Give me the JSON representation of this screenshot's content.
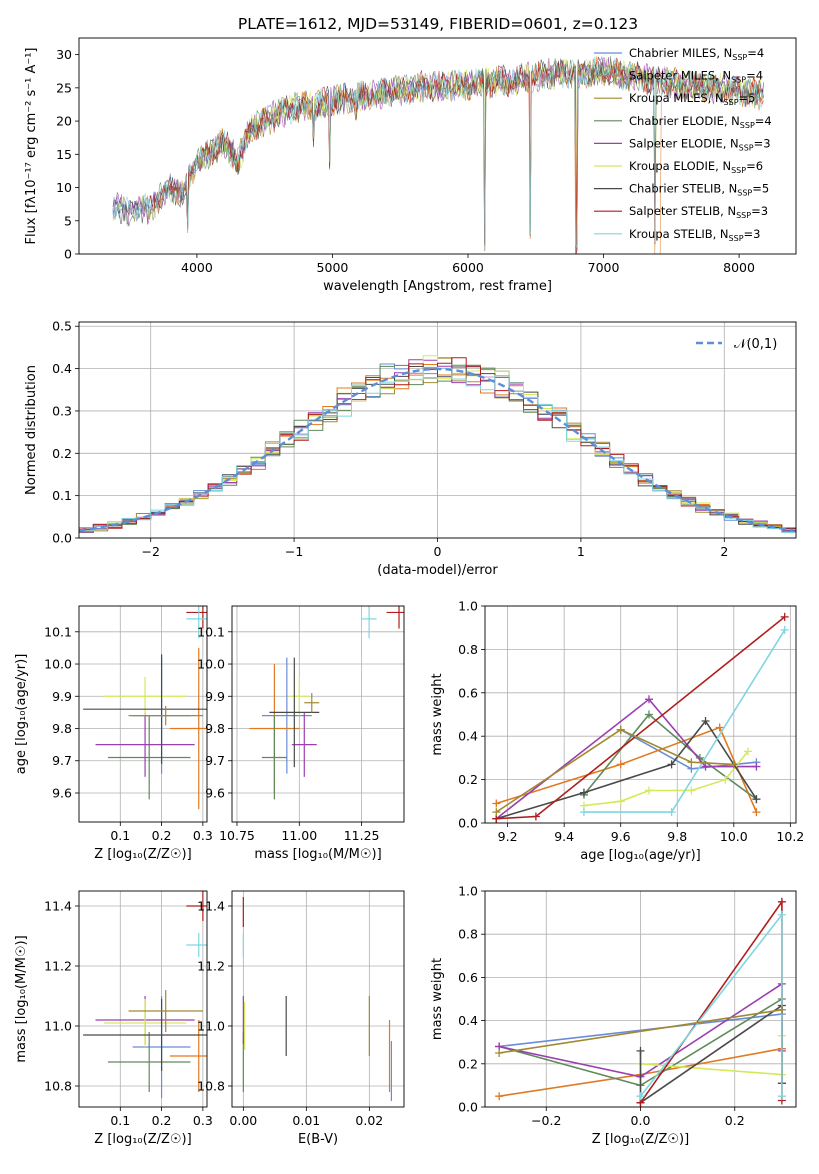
{
  "figure_title": "PLATE=1612, MJD=53149, FIBERID=0601, z=0.123",
  "chart_data": [
    {
      "id": "spectrum",
      "type": "line",
      "xlabel": "wavelength [Angstrom, rest frame]",
      "ylabel": "Flux [fλ10⁻¹⁷ erg cm⁻² s⁻¹ A⁻¹]",
      "xlim": [
        3130,
        8420
      ],
      "ylim": [
        0,
        32.5
      ],
      "xticks": [
        4000,
        5000,
        6000,
        7000,
        8000
      ],
      "yticks": [
        0,
        5,
        10,
        15,
        20,
        25,
        30
      ],
      "grid": false,
      "legend_placement": "top-right",
      "series": [
        {
          "name": "Chabrier MILES, N",
          "sub": "SSP",
          "eq": "=4",
          "color": "#6a8cd6"
        },
        {
          "name": "Salpeter MILES, N",
          "sub": "SSP",
          "eq": "=4",
          "color": "#e07a22"
        },
        {
          "name": "Kroupa MILES, N",
          "sub": "SSP",
          "eq": "=5",
          "color": "#a08a30"
        },
        {
          "name": "Chabrier ELODIE, N",
          "sub": "SSP",
          "eq": "=4",
          "color": "#5f8a5a"
        },
        {
          "name": "Salpeter ELODIE, N",
          "sub": "SSP",
          "eq": "=3",
          "color": "#9b3fb0"
        },
        {
          "name": "Kroupa ELODIE, N",
          "sub": "SSP",
          "eq": "=6",
          "color": "#d6e85a"
        },
        {
          "name": "Chabrier STELIB, N",
          "sub": "SSP",
          "eq": "=5",
          "color": "#4a4a4a"
        },
        {
          "name": "Salpeter STELIB, N",
          "sub": "SSP",
          "eq": "=3",
          "color": "#b01e1e"
        },
        {
          "name": "Kroupa STELIB, N",
          "sub": "SSP",
          "eq": "=3",
          "color": "#7fd6e0"
        }
      ],
      "continuum": [
        [
          3380,
          7
        ],
        [
          3500,
          6.5
        ],
        [
          3650,
          7
        ],
        [
          3800,
          10
        ],
        [
          3900,
          9
        ],
        [
          4000,
          14
        ],
        [
          4100,
          15
        ],
        [
          4200,
          17
        ],
        [
          4300,
          14
        ],
        [
          4400,
          19
        ],
        [
          4500,
          20
        ],
        [
          4700,
          22
        ],
        [
          4900,
          22.5
        ],
        [
          5100,
          23.5
        ],
        [
          5300,
          24
        ],
        [
          5600,
          25
        ],
        [
          6000,
          25.5
        ],
        [
          6300,
          26
        ],
        [
          6600,
          27
        ],
        [
          7000,
          27.5
        ],
        [
          7400,
          26
        ],
        [
          7800,
          25
        ],
        [
          8180,
          24
        ]
      ],
      "dips": [
        [
          3933,
          3
        ],
        [
          4861,
          16
        ],
        [
          4980,
          12.5
        ],
        [
          5175,
          20
        ],
        [
          6125,
          0
        ],
        [
          6460,
          2
        ],
        [
          6800,
          0
        ],
        [
          7380,
          0
        ]
      ]
    },
    {
      "id": "residuals",
      "type": "bar",
      "xlabel": "(data-model)/error",
      "ylabel": "Normed distribution",
      "xlim": [
        -2.5,
        2.5
      ],
      "ylim": [
        0,
        0.51
      ],
      "xticks": [
        -2,
        -1,
        0,
        1,
        2
      ],
      "yticks": [
        0.0,
        0.1,
        0.2,
        0.3,
        0.4,
        0.5
      ],
      "grid": true,
      "legend_placement": "top-right",
      "reference": {
        "label": "𝒩(0,1)",
        "mean": 0,
        "sigma": 1,
        "color": "#5b8fd9"
      },
      "bin_width": 0.1
    },
    {
      "id": "age-vs-Z",
      "type": "scatter",
      "xlabel": "Z [log₁₀(Z/Z☉)]",
      "ylabel": "age  [log₁₀(age/yr)]",
      "xlim": [
        0.0,
        0.31
      ],
      "ylim": [
        9.51,
        10.18
      ],
      "xticks": [
        0.1,
        0.2,
        0.3
      ],
      "yticks": [
        9.6,
        9.7,
        9.8,
        9.9,
        10.0,
        10.1
      ],
      "grid": true,
      "points": [
        {
          "series": 0,
          "x": 0.2,
          "xerr": 0.07,
          "y": 9.84,
          "yerr": 0.18
        },
        {
          "series": 1,
          "x": 0.29,
          "xerr": 0.07,
          "y": 9.8,
          "yerr": 0.25
        },
        {
          "series": 3,
          "x": 0.17,
          "xerr": 0.1,
          "y": 9.71,
          "yerr": 0.13
        },
        {
          "series": 4,
          "x": 0.16,
          "xerr": 0.12,
          "y": 9.75,
          "yerr": 0.1
        },
        {
          "series": 5,
          "x": 0.16,
          "xerr": 0.1,
          "y": 9.9,
          "yerr": 0.06
        },
        {
          "series": 6,
          "x": 0.2,
          "xerr": 0.19,
          "y": 9.86,
          "yerr": 0.17
        },
        {
          "series": 7,
          "x": 0.3,
          "xerr": 0.04,
          "y": 10.16,
          "yerr": 0.05
        },
        {
          "series": 8,
          "x": 0.29,
          "xerr": 0.03,
          "y": 10.14,
          "yerr": 0.06
        },
        {
          "series": 2,
          "x": 0.21,
          "xerr": 0.09,
          "y": 9.84,
          "yerr": 0.03
        }
      ]
    },
    {
      "id": "age-vs-mass",
      "type": "scatter",
      "xlabel": "mass [log₁₀(M/M☉)]",
      "ylabel": "",
      "xlim": [
        10.73,
        11.42
      ],
      "ylim": [
        9.51,
        10.18
      ],
      "xticks": [
        10.75,
        11.0,
        11.25
      ],
      "yticks": [
        9.6,
        9.7,
        9.8,
        9.9,
        10.0,
        10.1
      ],
      "grid": true,
      "points": [
        {
          "series": 0,
          "x": 10.95,
          "xerr": 0.1,
          "y": 9.84,
          "yerr": 0.18
        },
        {
          "series": 1,
          "x": 10.9,
          "xerr": 0.1,
          "y": 9.8,
          "yerr": 0.2
        },
        {
          "series": 3,
          "x": 10.9,
          "xerr": 0.05,
          "y": 9.71,
          "yerr": 0.13
        },
        {
          "series": 4,
          "x": 11.02,
          "xerr": 0.05,
          "y": 9.75,
          "yerr": 0.1
        },
        {
          "series": 5,
          "x": 11.0,
          "xerr": 0.04,
          "y": 9.9,
          "yerr": 0.06
        },
        {
          "series": 6,
          "x": 10.98,
          "xerr": 0.1,
          "y": 9.85,
          "yerr": 0.17
        },
        {
          "series": 7,
          "x": 11.4,
          "xerr": 0.05,
          "y": 10.16,
          "yerr": 0.05
        },
        {
          "series": 8,
          "x": 11.28,
          "xerr": 0.03,
          "y": 10.14,
          "yerr": 0.06
        },
        {
          "series": 2,
          "x": 11.05,
          "xerr": 0.03,
          "y": 9.88,
          "yerr": 0.03
        }
      ]
    },
    {
      "id": "weight-vs-age",
      "type": "line",
      "xlabel": "age  [log₁₀(age/yr)]",
      "ylabel": "mass weight",
      "xlim": [
        9.12,
        10.22
      ],
      "ylim": [
        0,
        1.0
      ],
      "xticks": [
        9.2,
        9.4,
        9.6,
        9.8,
        10.0,
        10.2
      ],
      "yticks": [
        0.0,
        0.2,
        0.4,
        0.6,
        0.8,
        1.0
      ],
      "grid": true,
      "lines": [
        {
          "series": 0,
          "x": [
            9.6,
            9.85,
            10.08
          ],
          "y": [
            0.43,
            0.25,
            0.28
          ]
        },
        {
          "series": 1,
          "x": [
            9.16,
            9.6,
            9.95,
            10.08
          ],
          "y": [
            0.09,
            0.27,
            0.44,
            0.05
          ]
        },
        {
          "series": 3,
          "x": [
            9.47,
            9.7,
            9.88,
            10.08
          ],
          "y": [
            0.13,
            0.5,
            0.3,
            0.11
          ]
        },
        {
          "series": 4,
          "x": [
            9.16,
            9.7,
            9.9,
            10.08
          ],
          "y": [
            0.02,
            0.57,
            0.26,
            0.26
          ]
        },
        {
          "series": 5,
          "x": [
            9.47,
            9.6,
            9.7,
            9.85,
            9.97,
            10.05
          ],
          "y": [
            0.08,
            0.1,
            0.15,
            0.15,
            0.2,
            0.33
          ]
        },
        {
          "series": 6,
          "x": [
            9.16,
            9.47,
            9.78,
            9.9,
            10.08
          ],
          "y": [
            0.02,
            0.14,
            0.27,
            0.47,
            0.11
          ]
        },
        {
          "series": 7,
          "x": [
            9.16,
            9.3,
            10.18
          ],
          "y": [
            0.02,
            0.03,
            0.95
          ]
        },
        {
          "series": 8,
          "x": [
            9.47,
            9.78,
            10.18
          ],
          "y": [
            0.05,
            0.05,
            0.89
          ]
        },
        {
          "series": 2,
          "x": [
            9.16,
            9.6,
            9.85,
            10.0
          ],
          "y": [
            0.05,
            0.43,
            0.28,
            0.27
          ]
        }
      ]
    },
    {
      "id": "mass-vs-Z",
      "type": "scatter",
      "xlabel": "Z [log₁₀(Z/Z☉)]",
      "ylabel": "mass [log₁₀(M/M☉)]",
      "xlim": [
        0.0,
        0.31
      ],
      "ylim": [
        10.73,
        11.45
      ],
      "xticks": [
        0.1,
        0.2,
        0.3
      ],
      "yticks": [
        10.8,
        11.0,
        11.2,
        11.4
      ],
      "grid": true,
      "points": [
        {
          "series": 0,
          "x": 0.2,
          "xerr": 0.07,
          "y": 10.93,
          "yerr": 0.17
        },
        {
          "series": 1,
          "x": 0.29,
          "xerr": 0.07,
          "y": 10.9,
          "yerr": 0.12
        },
        {
          "series": 3,
          "x": 0.17,
          "xerr": 0.1,
          "y": 10.88,
          "yerr": 0.1
        },
        {
          "series": 4,
          "x": 0.16,
          "xerr": 0.12,
          "y": 11.02,
          "yerr": 0.08
        },
        {
          "series": 5,
          "x": 0.16,
          "xerr": 0.1,
          "y": 11.01,
          "yerr": 0.08
        },
        {
          "series": 6,
          "x": 0.2,
          "xerr": 0.19,
          "y": 10.97,
          "yerr": 0.12
        },
        {
          "series": 7,
          "x": 0.3,
          "xerr": 0.04,
          "y": 11.4,
          "yerr": 0.05
        },
        {
          "series": 8,
          "x": 0.29,
          "xerr": 0.03,
          "y": 11.27,
          "yerr": 0.04
        },
        {
          "series": 2,
          "x": 0.21,
          "xerr": 0.09,
          "y": 11.05,
          "yerr": 0.07
        }
      ]
    },
    {
      "id": "mass-vs-EBV",
      "type": "scatter",
      "xlabel": "E(B-V)",
      "ylabel": "",
      "xlim": [
        -0.0018,
        0.0255
      ],
      "ylim": [
        10.73,
        11.45
      ],
      "xticks": [
        0.0,
        0.01,
        0.02
      ],
      "xticklabels": [
        "0.00",
        "0.01",
        "0.02"
      ],
      "yticks": [
        10.8,
        11.0,
        11.2,
        11.4
      ],
      "grid": true,
      "points": [
        {
          "series": 0,
          "x": 0.0235,
          "xerr": 0,
          "y": 10.85,
          "yerr": 0.1
        },
        {
          "series": 1,
          "x": 0.0232,
          "xerr": 0,
          "y": 10.9,
          "yerr": 0.12
        },
        {
          "series": 3,
          "x": 0.0,
          "xerr": 0,
          "y": 10.88,
          "yerr": 0.1
        },
        {
          "series": 4,
          "x": 0.0,
          "xerr": 0,
          "y": 11.02,
          "yerr": 0.08
        },
        {
          "series": 5,
          "x": 0.0002,
          "xerr": 0,
          "y": 11.0,
          "yerr": 0.08
        },
        {
          "series": 6,
          "x": 0.0068,
          "xerr": 0,
          "y": 11.0,
          "yerr": 0.1
        },
        {
          "series": 7,
          "x": 0.0,
          "xerr": 0,
          "y": 11.38,
          "yerr": 0.05
        },
        {
          "series": 8,
          "x": 0.0,
          "xerr": 0,
          "y": 11.27,
          "yerr": 0.04
        },
        {
          "series": 2,
          "x": 0.02,
          "xerr": 0,
          "y": 11.0,
          "yerr": 0.1
        }
      ]
    },
    {
      "id": "weight-vs-Z",
      "type": "line",
      "xlabel": "Z [log₁₀(Z/Z☉)]",
      "ylabel": "mass weight",
      "xlim": [
        -0.33,
        0.33
      ],
      "ylim": [
        0,
        1.0
      ],
      "xticks": [
        -0.2,
        0.0,
        0.2
      ],
      "xticklabels": [
        "−0.2",
        "0.0",
        "0.2"
      ],
      "yticks": [
        0.0,
        0.2,
        0.4,
        0.6,
        0.8,
        1.0
      ],
      "grid": true,
      "lines": [
        {
          "series": 0,
          "x": [
            -0.3,
            0.3
          ],
          "y": [
            0.28,
            0.43
          ]
        },
        {
          "series": 1,
          "x": [
            -0.3,
            0.0,
            0.3
          ],
          "y": [
            0.05,
            0.15,
            0.27
          ]
        },
        {
          "series": 3,
          "x": [
            -0.3,
            0.0,
            0.3,
            0.3
          ],
          "y": [
            0.28,
            0.1,
            0.5,
            0.11
          ]
        },
        {
          "series": 4,
          "x": [
            -0.3,
            0.0,
            0.3,
            0.3
          ],
          "y": [
            0.28,
            0.14,
            0.57,
            0.26
          ]
        },
        {
          "series": 5,
          "x": [
            0.0,
            0.3,
            0.3
          ],
          "y": [
            0.2,
            0.15,
            0.33
          ]
        },
        {
          "series": 6,
          "x": [
            0.0,
            0.0,
            0.3,
            0.3
          ],
          "y": [
            0.26,
            0.02,
            0.47,
            0.11
          ]
        },
        {
          "series": 7,
          "x": [
            0.0,
            0.3,
            0.3
          ],
          "y": [
            0.02,
            0.95,
            0.03
          ]
        },
        {
          "series": 8,
          "x": [
            0.0,
            0.3,
            0.3
          ],
          "y": [
            0.05,
            0.89,
            0.05
          ]
        },
        {
          "series": 2,
          "x": [
            -0.3,
            0.3
          ],
          "y": [
            0.25,
            0.45
          ]
        }
      ]
    }
  ]
}
